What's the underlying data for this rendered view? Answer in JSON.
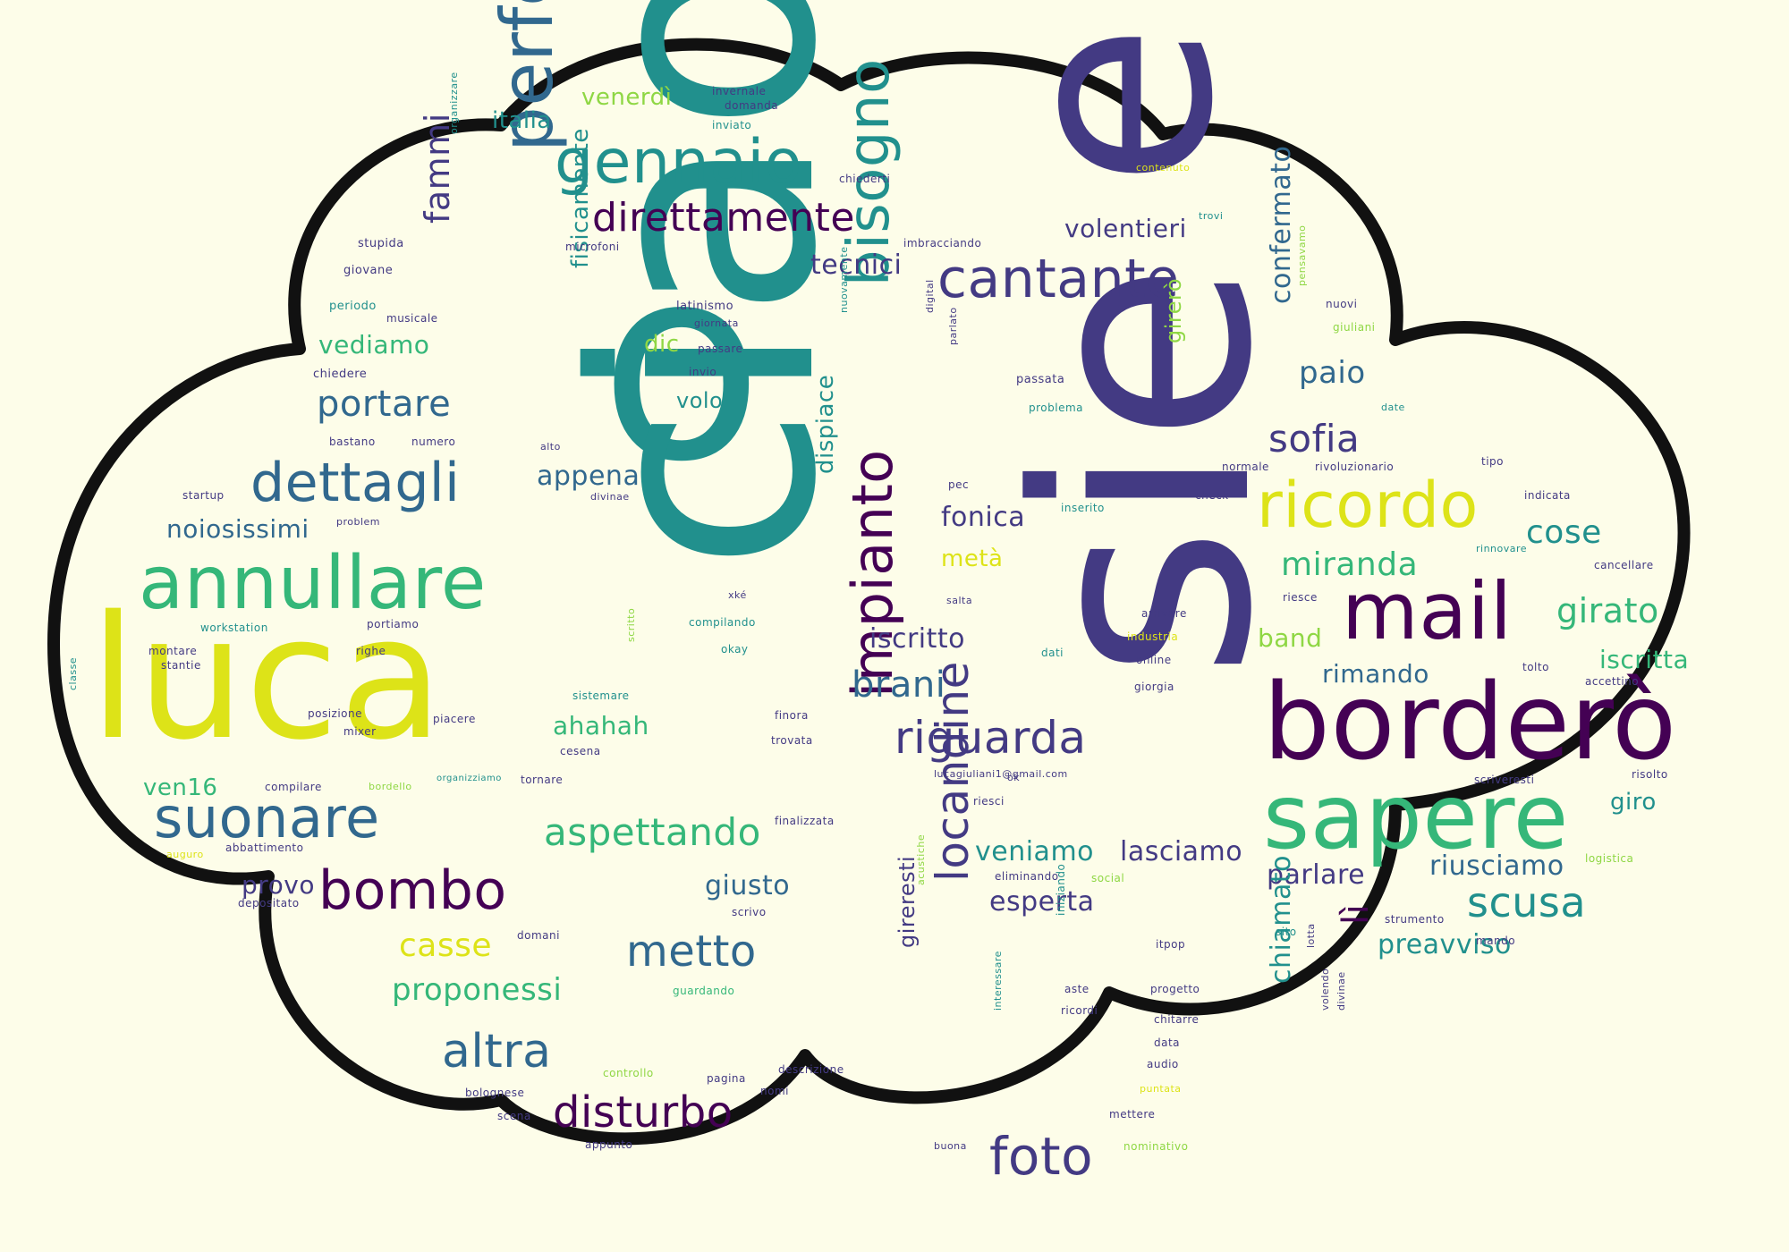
{
  "palette": {
    "background": "#fdfde9",
    "cloud_fill": "#fdfde9",
    "cloud_outline": "#111111",
    "dark_purple": "#440154",
    "indigo": "#433a83",
    "blue": "#31688e",
    "teal": "#21908d",
    "green": "#35b779",
    "yellow_green": "#8fd744",
    "yellow": "#dde318"
  },
  "words": [
    {
      "text": "o",
      "color": "teal"
    },
    {
      "text": "ciao",
      "color": "teal"
    },
    {
      "text": "e",
      "color": "indigo"
    },
    {
      "text": "sie",
      "color": "indigo"
    },
    {
      "text": "luca",
      "color": "yellow"
    },
    {
      "text": "borderò",
      "color": "dark_purple"
    },
    {
      "text": "sapere",
      "color": "green"
    },
    {
      "text": "mail",
      "color": "dark_purple"
    },
    {
      "text": "annullare",
      "color": "green"
    },
    {
      "text": "ricordo",
      "color": "yellow"
    },
    {
      "text": "perfetto",
      "color": "blue"
    },
    {
      "text": "gennaio",
      "color": "teal"
    },
    {
      "text": "bisogno",
      "color": "teal"
    },
    {
      "text": "impianto",
      "color": "dark_purple"
    },
    {
      "text": "cantante",
      "color": "indigo"
    },
    {
      "text": "suonare",
      "color": "blue"
    },
    {
      "text": "bombo",
      "color": "dark_purple"
    },
    {
      "text": "dettagli",
      "color": "blue"
    },
    {
      "text": "direttamente",
      "color": "dark_purple"
    },
    {
      "text": "locandine",
      "color": "indigo"
    },
    {
      "text": "riguarda",
      "color": "indigo"
    },
    {
      "text": "metto",
      "color": "blue"
    },
    {
      "text": "altra",
      "color": "blue"
    },
    {
      "text": "disturbo",
      "color": "dark_purple"
    },
    {
      "text": "foto",
      "color": "indigo"
    },
    {
      "text": "scusa",
      "color": "teal"
    },
    {
      "text": "aspettando",
      "color": "green"
    },
    {
      "text": "sofia",
      "color": "indigo"
    },
    {
      "text": "portare",
      "color": "blue"
    },
    {
      "text": "fammi",
      "color": "indigo"
    },
    {
      "text": "brani",
      "color": "blue"
    },
    {
      "text": "girato",
      "color": "green"
    },
    {
      "text": "miranda",
      "color": "green"
    },
    {
      "text": "cose",
      "color": "teal"
    },
    {
      "text": "casse",
      "color": "yellow"
    },
    {
      "text": "proponessi",
      "color": "green"
    },
    {
      "text": "paio",
      "color": "blue"
    },
    {
      "text": "lì",
      "color": "dark_purple"
    },
    {
      "text": "giusto",
      "color": "blue"
    },
    {
      "text": "esperta",
      "color": "indigo"
    },
    {
      "text": "lasciamo",
      "color": "indigo"
    },
    {
      "text": "veniamo",
      "color": "teal"
    },
    {
      "text": "riusciamo",
      "color": "blue"
    },
    {
      "text": "preavviso",
      "color": "teal"
    },
    {
      "text": "parlare",
      "color": "indigo"
    },
    {
      "text": "chiamato",
      "color": "teal"
    },
    {
      "text": "confermato",
      "color": "blue"
    },
    {
      "text": "iscritto",
      "color": "indigo"
    },
    {
      "text": "fonica",
      "color": "indigo"
    },
    {
      "text": "metà",
      "color": "yellow"
    },
    {
      "text": "ahahah",
      "color": "green"
    },
    {
      "text": "appena",
      "color": "blue"
    },
    {
      "text": "noiosissimi",
      "color": "blue"
    },
    {
      "text": "vediamo",
      "color": "green"
    },
    {
      "text": "tecnici",
      "color": "indigo"
    },
    {
      "text": "volentieri",
      "color": "indigo"
    },
    {
      "text": "rimando",
      "color": "blue"
    },
    {
      "text": "band",
      "color": "yellow_green"
    },
    {
      "text": "iscritta",
      "color": "green"
    },
    {
      "text": "provo",
      "color": "indigo"
    },
    {
      "text": "ven16",
      "color": "green"
    },
    {
      "text": "italia",
      "color": "teal"
    },
    {
      "text": "venerdì",
      "color": "yellow_green"
    },
    {
      "text": "fisicamente",
      "color": "teal"
    },
    {
      "text": "dic",
      "color": "yellow_green"
    },
    {
      "text": "volo",
      "color": "teal"
    },
    {
      "text": "dispiace",
      "color": "teal"
    },
    {
      "text": "girerò",
      "color": "yellow_green"
    },
    {
      "text": "gireresti",
      "color": "indigo"
    },
    {
      "text": "giro",
      "color": "teal"
    },
    {
      "text": "latinismo",
      "color": "indigo"
    },
    {
      "text": "giornata",
      "color": "indigo"
    },
    {
      "text": "passare",
      "color": "indigo"
    },
    {
      "text": "invio",
      "color": "indigo"
    },
    {
      "text": "passata",
      "color": "indigo"
    },
    {
      "text": "problema",
      "color": "teal"
    },
    {
      "text": "invernale",
      "color": "indigo"
    },
    {
      "text": "domanda",
      "color": "indigo"
    },
    {
      "text": "inviato",
      "color": "teal"
    },
    {
      "text": "chiederti",
      "color": "indigo"
    },
    {
      "text": "contenuto",
      "color": "yellow"
    },
    {
      "text": "trovi",
      "color": "teal"
    },
    {
      "text": "imbracciando",
      "color": "indigo"
    },
    {
      "text": "microfoni",
      "color": "indigo"
    },
    {
      "text": "stupida",
      "color": "indigo"
    },
    {
      "text": "giovane",
      "color": "indigo"
    },
    {
      "text": "periodo",
      "color": "teal"
    },
    {
      "text": "musicale",
      "color": "indigo"
    },
    {
      "text": "chiedere",
      "color": "indigo"
    },
    {
      "text": "bastano",
      "color": "indigo"
    },
    {
      "text": "numero",
      "color": "indigo"
    },
    {
      "text": "alto",
      "color": "indigo"
    },
    {
      "text": "startup",
      "color": "indigo"
    },
    {
      "text": "problem",
      "color": "indigo"
    },
    {
      "text": "divinae",
      "color": "indigo"
    },
    {
      "text": "organizzare",
      "color": "teal"
    },
    {
      "text": "nuovamente",
      "color": "teal"
    },
    {
      "text": "digital",
      "color": "indigo"
    },
    {
      "text": "parlato",
      "color": "indigo"
    },
    {
      "text": "nuovi",
      "color": "indigo"
    },
    {
      "text": "pensavamo",
      "color": "yellow_green"
    },
    {
      "text": "giuliani",
      "color": "yellow_green"
    },
    {
      "text": "date",
      "color": "teal"
    },
    {
      "text": "normale",
      "color": "indigo"
    },
    {
      "text": "rivoluzionario",
      "color": "indigo"
    },
    {
      "text": "tipo",
      "color": "indigo"
    },
    {
      "text": "pec",
      "color": "indigo"
    },
    {
      "text": "inserito",
      "color": "teal"
    },
    {
      "text": "check",
      "color": "indigo"
    },
    {
      "text": "indicata",
      "color": "indigo"
    },
    {
      "text": "rinnovare",
      "color": "teal"
    },
    {
      "text": "cancellare",
      "color": "indigo"
    },
    {
      "text": "salta",
      "color": "indigo"
    },
    {
      "text": "riesce",
      "color": "indigo"
    },
    {
      "text": "accettino",
      "color": "indigo"
    },
    {
      "text": "arrivare",
      "color": "indigo"
    },
    {
      "text": "industria",
      "color": "yellow"
    },
    {
      "text": "online",
      "color": "indigo"
    },
    {
      "text": "giorgia",
      "color": "indigo"
    },
    {
      "text": "dati",
      "color": "teal"
    },
    {
      "text": "tolto",
      "color": "indigo"
    },
    {
      "text": "risolto",
      "color": "indigo"
    },
    {
      "text": "xké",
      "color": "indigo"
    },
    {
      "text": "compilando",
      "color": "teal"
    },
    {
      "text": "okay",
      "color": "teal"
    },
    {
      "text": "scritto",
      "color": "yellow_green"
    },
    {
      "text": "workstation",
      "color": "teal"
    },
    {
      "text": "portiamo",
      "color": "indigo"
    },
    {
      "text": "montare",
      "color": "indigo"
    },
    {
      "text": "righe",
      "color": "indigo"
    },
    {
      "text": "stantie",
      "color": "indigo"
    },
    {
      "text": "classe",
      "color": "teal"
    },
    {
      "text": "posizione",
      "color": "indigo"
    },
    {
      "text": "piacere",
      "color": "indigo"
    },
    {
      "text": "mixer",
      "color": "indigo"
    },
    {
      "text": "sistemare",
      "color": "teal"
    },
    {
      "text": "finora",
      "color": "indigo"
    },
    {
      "text": "trovata",
      "color": "indigo"
    },
    {
      "text": "cesena",
      "color": "indigo"
    },
    {
      "text": "compilare",
      "color": "indigo"
    },
    {
      "text": "bordello",
      "color": "yellow_green"
    },
    {
      "text": "organizziamo",
      "color": "teal"
    },
    {
      "text": "tornare",
      "color": "indigo"
    },
    {
      "text": "lucagiuliani1@gmail.com",
      "color": "indigo"
    },
    {
      "text": "riesci",
      "color": "indigo"
    },
    {
      "text": "finalizzata",
      "color": "indigo"
    },
    {
      "text": "scriveresti",
      "color": "indigo"
    },
    {
      "text": "logistica",
      "color": "yellow_green"
    },
    {
      "text": "abbattimento",
      "color": "indigo"
    },
    {
      "text": "auguro",
      "color": "yellow"
    },
    {
      "text": "depositato",
      "color": "indigo"
    },
    {
      "text": "eliminando",
      "color": "indigo"
    },
    {
      "text": "social",
      "color": "yellow_green"
    },
    {
      "text": "acustiche",
      "color": "yellow_green"
    },
    {
      "text": "iniziando",
      "color": "teal"
    },
    {
      "text": "scrivo",
      "color": "indigo"
    },
    {
      "text": "domani",
      "color": "indigo"
    },
    {
      "text": "guardando",
      "color": "green"
    },
    {
      "text": "strumento",
      "color": "indigo"
    },
    {
      "text": "sito",
      "color": "teal"
    },
    {
      "text": "lotta",
      "color": "indigo"
    },
    {
      "text": "mando",
      "color": "indigo"
    },
    {
      "text": "itpop",
      "color": "indigo"
    },
    {
      "text": "aste",
      "color": "indigo"
    },
    {
      "text": "ricordi",
      "color": "indigo"
    },
    {
      "text": "progetto",
      "color": "indigo"
    },
    {
      "text": "chitarre",
      "color": "indigo"
    },
    {
      "text": "data",
      "color": "indigo"
    },
    {
      "text": "audio",
      "color": "indigo"
    },
    {
      "text": "puntata",
      "color": "yellow"
    },
    {
      "text": "mettere",
      "color": "indigo"
    },
    {
      "text": "nominativo",
      "color": "yellow_green"
    },
    {
      "text": "buona",
      "color": "indigo"
    },
    {
      "text": "interessare",
      "color": "teal"
    },
    {
      "text": "volendo",
      "color": "indigo"
    },
    {
      "text": "divinae",
      "color": "indigo"
    },
    {
      "text": "controllo",
      "color": "yellow_green"
    },
    {
      "text": "pagina",
      "color": "indigo"
    },
    {
      "text": "descrizione",
      "color": "indigo"
    },
    {
      "text": "nomi",
      "color": "indigo"
    },
    {
      "text": "bolognese",
      "color": "indigo"
    },
    {
      "text": "scena",
      "color": "indigo"
    },
    {
      "text": "appunto",
      "color": "indigo"
    },
    {
      "text": "ok",
      "color": "indigo"
    }
  ]
}
